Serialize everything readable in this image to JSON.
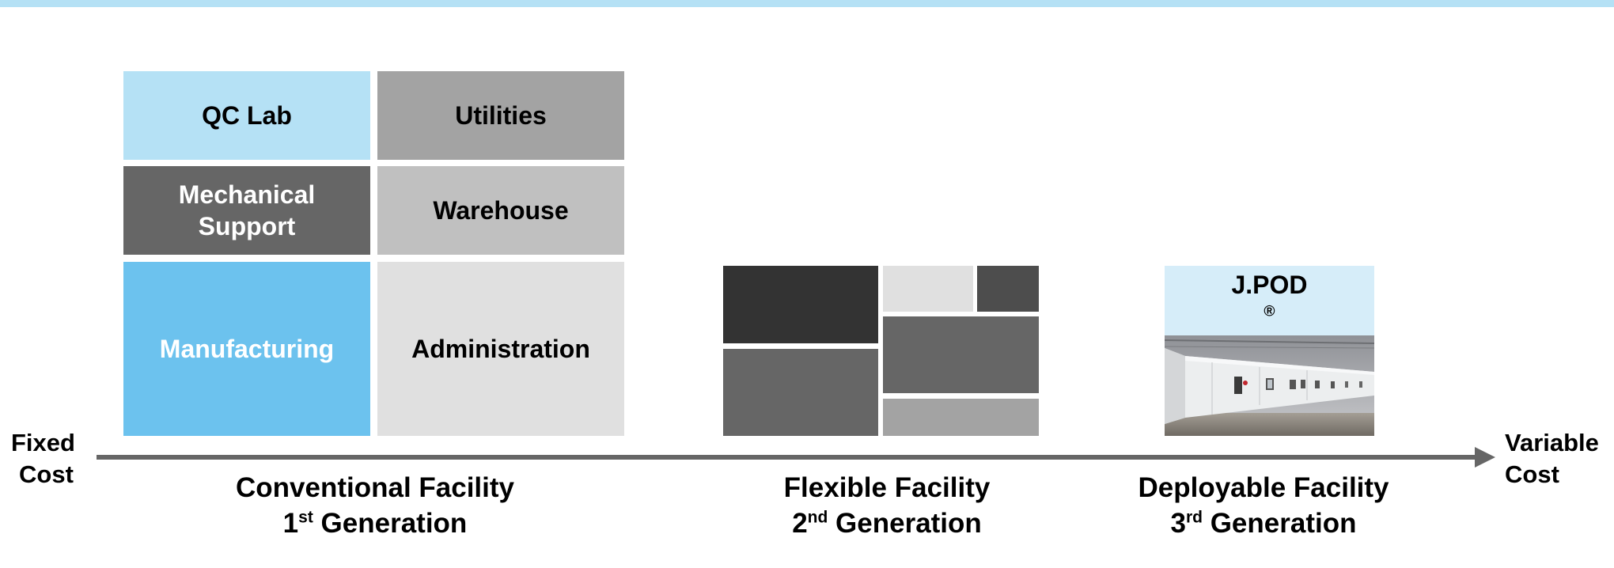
{
  "axis": {
    "left_label_line1": "Fixed",
    "left_label_line2": "Cost",
    "right_label_line1": "Variable",
    "right_label_line2": "Cost"
  },
  "conventional": {
    "blocks": [
      {
        "key": "qc_lab",
        "label": "QC Lab",
        "color": "#b5e1f5",
        "text_color": "#000000"
      },
      {
        "key": "utilities",
        "label": "Utilities",
        "color": "#a3a3a3",
        "text_color": "#000000"
      },
      {
        "key": "mechanical_support",
        "label_line1": "Mechanical",
        "label_line2": "Support",
        "color": "#666666",
        "text_color": "#ffffff"
      },
      {
        "key": "warehouse",
        "label": "Warehouse",
        "color": "#c0c0c0",
        "text_color": "#000000"
      },
      {
        "key": "manufacturing",
        "label": "Manufacturing",
        "color": "#6cc2ee",
        "text_color": "#ffffff"
      },
      {
        "key": "administration",
        "label": "Administration",
        "color": "#e0e0e0",
        "text_color": "#000000"
      }
    ],
    "caption_line1": "Conventional Facility",
    "caption_line2_num": "1",
    "caption_line2_sup": "st",
    "caption_line2_rest": " Generation"
  },
  "flexible": {
    "block_colors": [
      "#333333",
      "#e0e0e0",
      "#4d4d4d",
      "#666666",
      "#666666",
      "#a3a3a3"
    ],
    "caption_line1": "Flexible Facility",
    "caption_line2_num": "2",
    "caption_line2_sup": "nd",
    "caption_line2_rest": " Generation"
  },
  "deployable": {
    "pod_label": "J.POD",
    "pod_label_sup": "®",
    "pod_header_color": "#d6edf9",
    "caption_line1": "Deployable Facility",
    "caption_line2_num": "3",
    "caption_line2_sup": "rd",
    "caption_line2_rest": " Generation"
  }
}
